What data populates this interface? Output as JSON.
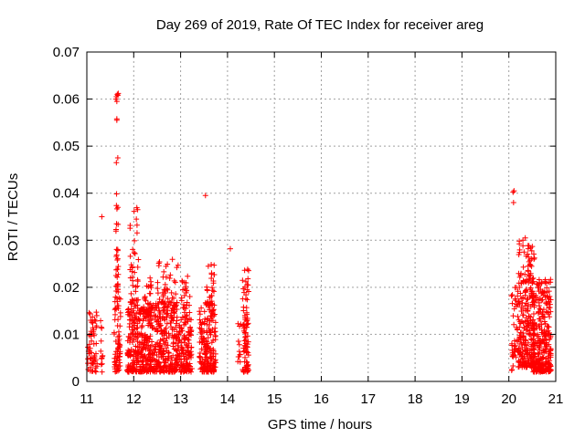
{
  "chart_data": {
    "type": "scatter",
    "title": "Day 269 of 2019, Rate Of TEC Index for receiver areg",
    "xlabel": "GPS time / hours",
    "ylabel": "ROTI / TECUs",
    "xlim": [
      11,
      21
    ],
    "ylim": [
      0,
      0.07
    ],
    "x_ticks": [
      "11",
      "12",
      "13",
      "14",
      "15",
      "16",
      "17",
      "18",
      "19",
      "20",
      "21"
    ],
    "y_ticks": [
      "0",
      "0.01",
      "0.02",
      "0.03",
      "0.04",
      "0.05",
      "0.06",
      "0.07"
    ],
    "grid": true,
    "marker": "+",
    "color": "#ff0000",
    "clusters": [
      {
        "x0": 11.02,
        "x1": 11.22,
        "ymin": 0.002,
        "ymax": 0.015,
        "n": 60
      },
      {
        "x0": 11.28,
        "x1": 11.34,
        "ymin": 0.002,
        "ymax": 0.014,
        "n": 12
      },
      {
        "x0": 11.58,
        "x1": 11.72,
        "ymin": 0.002,
        "ymax": 0.018,
        "n": 70
      },
      {
        "x0": 11.62,
        "x1": 11.68,
        "ymin": 0.019,
        "ymax": 0.04,
        "n": 30
      },
      {
        "x0": 11.86,
        "x1": 12.4,
        "ymin": 0.002,
        "ymax": 0.016,
        "n": 300
      },
      {
        "x0": 11.92,
        "x1": 12.1,
        "ymin": 0.016,
        "ymax": 0.037,
        "n": 45
      },
      {
        "x0": 12.2,
        "x1": 12.38,
        "ymin": 0.014,
        "ymax": 0.022,
        "n": 30
      },
      {
        "x0": 12.4,
        "x1": 12.98,
        "ymin": 0.002,
        "ymax": 0.017,
        "n": 300
      },
      {
        "x0": 12.5,
        "x1": 12.95,
        "ymin": 0.016,
        "ymax": 0.026,
        "n": 40
      },
      {
        "x0": 13.0,
        "x1": 13.25,
        "ymin": 0.002,
        "ymax": 0.014,
        "n": 120
      },
      {
        "x0": 13.02,
        "x1": 13.2,
        "ymin": 0.014,
        "ymax": 0.023,
        "n": 25
      },
      {
        "x0": 13.4,
        "x1": 13.75,
        "ymin": 0.002,
        "ymax": 0.016,
        "n": 180
      },
      {
        "x0": 13.52,
        "x1": 13.72,
        "ymin": 0.016,
        "ymax": 0.025,
        "n": 35
      },
      {
        "x0": 14.22,
        "x1": 14.3,
        "ymin": 0.004,
        "ymax": 0.013,
        "n": 12
      },
      {
        "x0": 14.32,
        "x1": 14.45,
        "ymin": 0.002,
        "ymax": 0.024,
        "n": 90
      },
      {
        "x0": 20.05,
        "x1": 20.2,
        "ymin": 0.002,
        "ymax": 0.02,
        "n": 40
      },
      {
        "x0": 20.2,
        "x1": 20.55,
        "ymin": 0.003,
        "ymax": 0.03,
        "n": 260
      },
      {
        "x0": 20.5,
        "x1": 20.9,
        "ymin": 0.002,
        "ymax": 0.022,
        "n": 280
      }
    ],
    "outliers": [
      {
        "x": 11.32,
        "y": 0.035
      },
      {
        "x": 11.63,
        "y": 0.0465
      },
      {
        "x": 11.66,
        "y": 0.0475
      },
      {
        "x": 11.64,
        "y": 0.0555
      },
      {
        "x": 11.64,
        "y": 0.0558
      },
      {
        "x": 11.62,
        "y": 0.06
      },
      {
        "x": 11.63,
        "y": 0.0605
      },
      {
        "x": 11.65,
        "y": 0.061
      },
      {
        "x": 11.66,
        "y": 0.0608
      },
      {
        "x": 11.67,
        "y": 0.0612
      },
      {
        "x": 11.64,
        "y": 0.0595
      },
      {
        "x": 13.53,
        "y": 0.0395
      },
      {
        "x": 14.06,
        "y": 0.0282
      },
      {
        "x": 20.09,
        "y": 0.0402
      },
      {
        "x": 20.11,
        "y": 0.0405
      },
      {
        "x": 20.1,
        "y": 0.038
      },
      {
        "x": 20.35,
        "y": 0.0305
      },
      {
        "x": 20.3,
        "y": 0.03
      }
    ]
  }
}
